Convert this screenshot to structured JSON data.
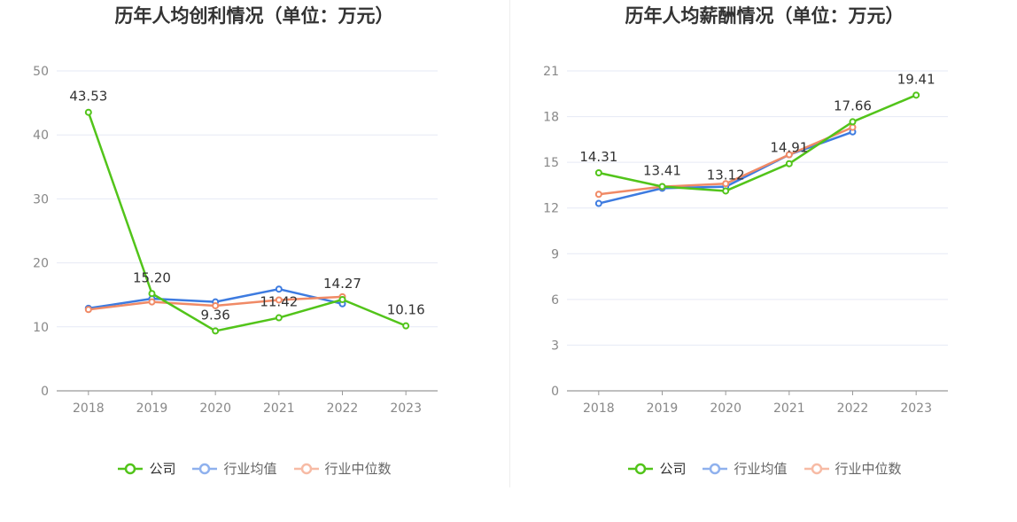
{
  "chart_data": [
    {
      "type": "line",
      "title": "历年人均创利情况（单位：万元）",
      "categories": [
        "2018",
        "2019",
        "2020",
        "2021",
        "2022",
        "2023"
      ],
      "ylim": [
        0,
        50
      ],
      "yticks": [
        0,
        10,
        20,
        30,
        40,
        50
      ],
      "grid": true,
      "legend_position": "bottom",
      "series": [
        {
          "name": "公司",
          "color": "#52c41a",
          "values": [
            43.53,
            15.2,
            9.36,
            11.42,
            14.27,
            10.16
          ],
          "labels": [
            "43.53",
            "15.20",
            "9.36",
            "11.42",
            "14.27",
            "10.16"
          ]
        },
        {
          "name": "行业均值",
          "color": "#3d7be0",
          "values": [
            12.9,
            14.4,
            13.9,
            15.9,
            13.6,
            null
          ]
        },
        {
          "name": "行业中位数",
          "color": "#f08a66",
          "values": [
            12.7,
            13.9,
            13.3,
            14.2,
            14.7,
            null
          ]
        }
      ]
    },
    {
      "type": "line",
      "title": "历年人均薪酬情况（单位：万元）",
      "categories": [
        "2018",
        "2019",
        "2020",
        "2021",
        "2022",
        "2023"
      ],
      "ylim": [
        0,
        21
      ],
      "yticks": [
        0,
        3,
        6,
        9,
        12,
        15,
        18,
        21
      ],
      "grid": true,
      "legend_position": "bottom",
      "series": [
        {
          "name": "公司",
          "color": "#52c41a",
          "values": [
            14.31,
            13.41,
            13.12,
            14.91,
            17.66,
            19.41
          ],
          "labels": [
            "14.31",
            "13.41",
            "13.12",
            "14.91",
            "17.66",
            "19.41"
          ]
        },
        {
          "name": "行业均值",
          "color": "#3d7be0",
          "values": [
            12.3,
            13.3,
            13.4,
            15.5,
            17.0,
            null
          ]
        },
        {
          "name": "行业中位数",
          "color": "#f08a66",
          "values": [
            12.9,
            13.4,
            13.6,
            15.5,
            17.3,
            null
          ]
        }
      ]
    }
  ],
  "legend": {
    "items": [
      {
        "label": "公司",
        "color": "#52c41a",
        "light": "#52c41a",
        "text_color": "#333333"
      },
      {
        "label": "行业均值",
        "color": "#8fb1ee",
        "light": "#8fb1ee",
        "text_color": "#666666"
      },
      {
        "label": "行业中位数",
        "color": "#f7bba5",
        "light": "#f7bba5",
        "text_color": "#666666"
      }
    ]
  }
}
